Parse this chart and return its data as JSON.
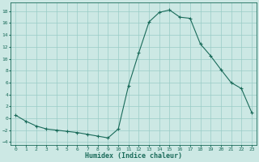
{
  "x": [
    0,
    1,
    2,
    3,
    4,
    5,
    6,
    7,
    8,
    9,
    10,
    11,
    12,
    13,
    14,
    15,
    16,
    17,
    18,
    19,
    20,
    21,
    22,
    23
  ],
  "y": [
    0.5,
    -0.5,
    -1.3,
    -1.8,
    -2.0,
    -2.2,
    -2.4,
    -2.7,
    -3.0,
    -3.3,
    -1.8,
    5.5,
    11.0,
    16.2,
    17.8,
    18.2,
    17.0,
    16.8,
    12.5,
    10.5,
    8.2,
    6.0,
    5.0,
    1.0
  ],
  "xlabel": "Humidex (Indice chaleur)",
  "xlim": [
    -0.5,
    23.5
  ],
  "ylim": [
    -4.5,
    19.5
  ],
  "yticks": [
    -4,
    -2,
    0,
    2,
    4,
    6,
    8,
    10,
    12,
    14,
    16,
    18
  ],
  "xticks": [
    0,
    1,
    2,
    3,
    4,
    5,
    6,
    7,
    8,
    9,
    10,
    11,
    12,
    13,
    14,
    15,
    16,
    17,
    18,
    19,
    20,
    21,
    22,
    23
  ],
  "line_color": "#1a6b5a",
  "marker": "+",
  "bg_color": "#cce8e4",
  "grid_color": "#99ccc6",
  "spine_color": "#1a6b5a",
  "tick_fontsize": 4.5,
  "xlabel_fontsize": 6.0
}
